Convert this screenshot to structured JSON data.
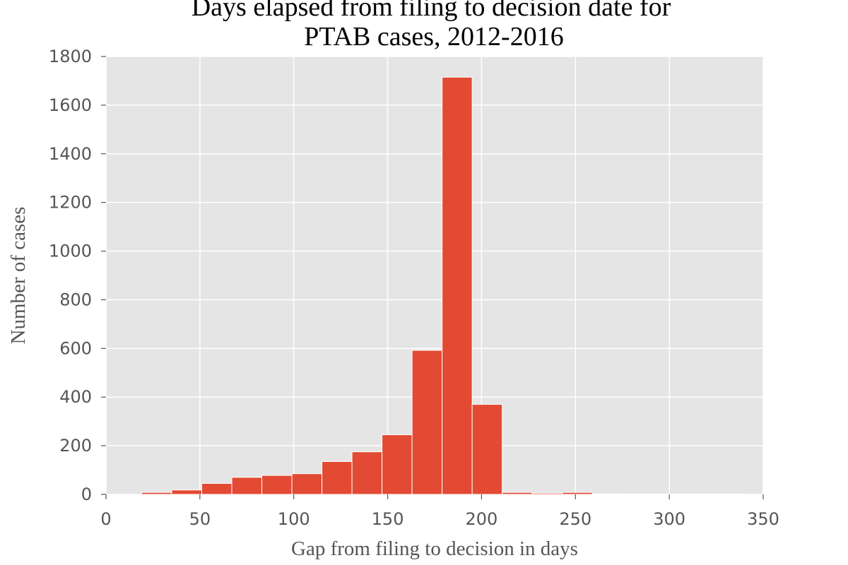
{
  "chart_data": {
    "type": "bar",
    "title_lines": [
      "Days elapsed from filing to decision date for",
      "PTAB cases, 2012-2016"
    ],
    "xlabel": "Gap from filing to decision in days",
    "ylabel": "Number of cases",
    "xlim": [
      0,
      350
    ],
    "ylim": [
      0,
      1800
    ],
    "xticks": [
      0,
      50,
      100,
      150,
      200,
      250,
      300,
      350
    ],
    "xtick_labels": [
      "0",
      "50",
      "100",
      "150",
      "200",
      "250",
      "300",
      "350"
    ],
    "yticks": [
      0,
      200,
      400,
      600,
      800,
      1000,
      1200,
      1400,
      1600,
      1800
    ],
    "ytick_labels": [
      "0",
      "200",
      "400",
      "600",
      "800",
      "1000",
      "1200",
      "1400",
      "1600",
      "1800"
    ],
    "grid": true,
    "colors": {
      "bar": "#E24A33",
      "plot_bg": "#E5E5E5",
      "grid": "#FFFFFF"
    },
    "bins": [
      {
        "x0": 19,
        "x1": 35,
        "value": 8
      },
      {
        "x0": 35,
        "x1": 51,
        "value": 18
      },
      {
        "x0": 51,
        "x1": 67,
        "value": 45
      },
      {
        "x0": 67,
        "x1": 83,
        "value": 70
      },
      {
        "x0": 83,
        "x1": 99,
        "value": 78
      },
      {
        "x0": 99,
        "x1": 115,
        "value": 85
      },
      {
        "x0": 115,
        "x1": 131,
        "value": 135
      },
      {
        "x0": 131,
        "x1": 147,
        "value": 175
      },
      {
        "x0": 147,
        "x1": 163,
        "value": 245
      },
      {
        "x0": 163,
        "x1": 179,
        "value": 592
      },
      {
        "x0": 179,
        "x1": 195,
        "value": 1715
      },
      {
        "x0": 195,
        "x1": 211,
        "value": 370
      },
      {
        "x0": 211,
        "x1": 227,
        "value": 8
      },
      {
        "x0": 227,
        "x1": 243,
        "value": 5
      },
      {
        "x0": 243,
        "x1": 259,
        "value": 8
      },
      {
        "x0": 259,
        "x1": 275,
        "value": 2
      },
      {
        "x0": 275,
        "x1": 291,
        "value": 1
      },
      {
        "x0": 291,
        "x1": 307,
        "value": 1
      },
      {
        "x0": 307,
        "x1": 323,
        "value": 1
      },
      {
        "x0": 323,
        "x1": 339,
        "value": 1
      }
    ]
  }
}
